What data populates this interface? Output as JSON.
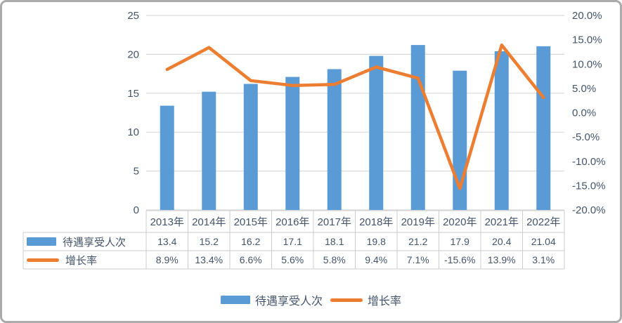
{
  "chart_data": {
    "type": "bar+line",
    "title": "",
    "categories": [
      "2013年",
      "2014年",
      "2015年",
      "2016年",
      "2017年",
      "2018年",
      "2019年",
      "2020年",
      "2021年",
      "2022年"
    ],
    "series": [
      {
        "name": "待遇享受人次",
        "type": "bar",
        "axis": "left",
        "color": "#5B9BD5",
        "values": [
          13.4,
          15.2,
          16.2,
          17.1,
          18.1,
          19.8,
          21.2,
          17.9,
          20.4,
          21.04
        ]
      },
      {
        "name": "增长率",
        "type": "line",
        "axis": "right",
        "unit": "%",
        "color": "#ED7D31",
        "values": [
          8.9,
          13.4,
          6.6,
          5.6,
          5.8,
          9.4,
          7.1,
          -15.6,
          13.9,
          3.1
        ]
      }
    ],
    "left_axis": {
      "min": 0,
      "max": 25,
      "ticks": [
        "25",
        "20",
        "15",
        "10",
        "5",
        "0"
      ]
    },
    "right_axis": {
      "min": -20,
      "max": 20,
      "ticks": [
        "20.0%",
        "15.0%",
        "10.0%",
        "5.0%",
        "0.0%",
        "-5.0%",
        "-10.0%",
        "-15.0%",
        "-20.0%"
      ]
    },
    "grid": true,
    "legend_position": "bottom",
    "data_table_shown": true
  },
  "colors": {
    "bar": "#5B9BD5",
    "line": "#ED7D31",
    "gridline": "#d9d9d9",
    "table_border": "#cdcdcd",
    "text": "#44546A",
    "frame_border": "#ababab"
  }
}
